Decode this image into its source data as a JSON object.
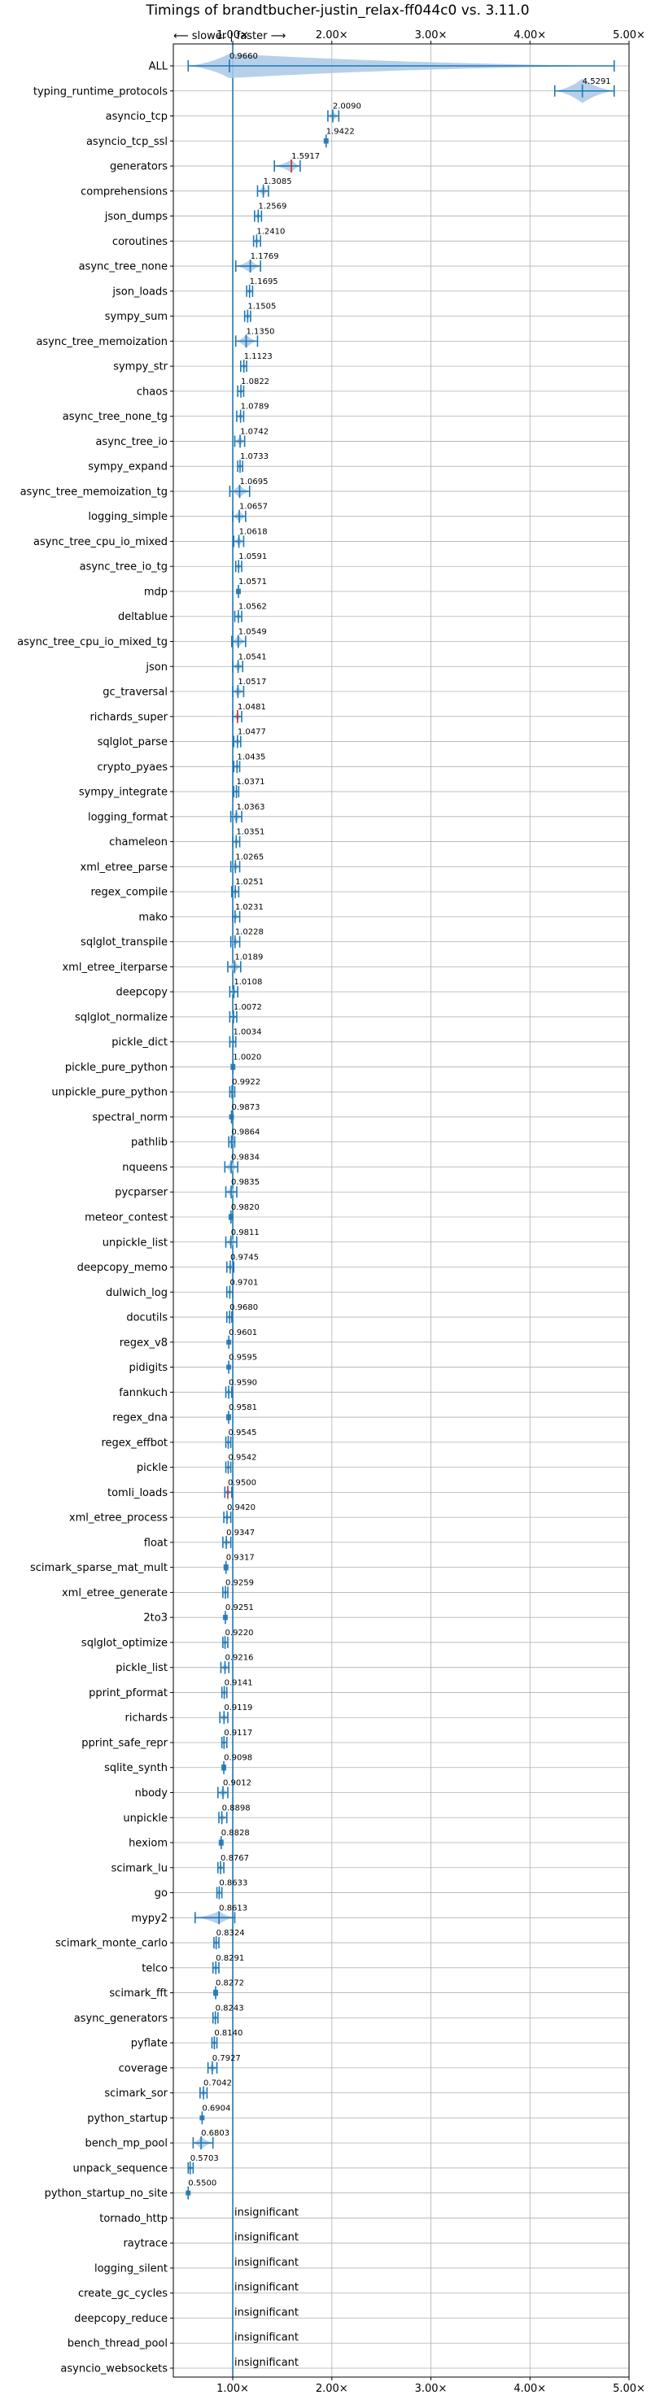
{
  "chart_data": {
    "type": "violin",
    "title": "Timings of brandtbucher-justin_relax-ff044c0 vs. 3.11.0",
    "direction_label": "⟵ slower | faster ⟶",
    "xlim": [
      0.4,
      5.0
    ],
    "x_ticks": [
      1.0,
      2.0,
      3.0,
      4.0,
      5.0
    ],
    "x_tick_labels": [
      "1.00×",
      "2.00×",
      "3.00×",
      "4.00×",
      "5.00×"
    ],
    "grid": true,
    "reference_x": 1.0,
    "colors": {
      "violin": "#1f77b4",
      "violin_fill": "#a9c8e6",
      "grid": "#b0b0b0",
      "marker_red": "#d62728"
    },
    "categories": [
      "ALL",
      "typing_runtime_protocols",
      "asyncio_tcp",
      "asyncio_tcp_ssl",
      "generators",
      "comprehensions",
      "json_dumps",
      "coroutines",
      "async_tree_none",
      "json_loads",
      "sympy_sum",
      "async_tree_memoization",
      "sympy_str",
      "chaos",
      "async_tree_none_tg",
      "async_tree_io",
      "sympy_expand",
      "async_tree_memoization_tg",
      "logging_simple",
      "async_tree_cpu_io_mixed",
      "async_tree_io_tg",
      "mdp",
      "deltablue",
      "async_tree_cpu_io_mixed_tg",
      "json",
      "gc_traversal",
      "richards_super",
      "sqlglot_parse",
      "crypto_pyaes",
      "sympy_integrate",
      "logging_format",
      "chameleon",
      "xml_etree_parse",
      "regex_compile",
      "mako",
      "sqlglot_transpile",
      "xml_etree_iterparse",
      "deepcopy",
      "sqlglot_normalize",
      "pickle_dict",
      "pickle_pure_python",
      "unpickle_pure_python",
      "spectral_norm",
      "pathlib",
      "nqueens",
      "pycparser",
      "meteor_contest",
      "unpickle_list",
      "deepcopy_memo",
      "dulwich_log",
      "docutils",
      "regex_v8",
      "pidigits",
      "fannkuch",
      "regex_dna",
      "regex_effbot",
      "pickle",
      "tomli_loads",
      "xml_etree_process",
      "float",
      "scimark_sparse_mat_mult",
      "xml_etree_generate",
      "2to3",
      "sqlglot_optimize",
      "pickle_list",
      "pprint_pformat",
      "richards",
      "pprint_safe_repr",
      "sqlite_synth",
      "nbody",
      "unpickle",
      "hexiom",
      "scimark_lu",
      "go",
      "mypy2",
      "scimark_monte_carlo",
      "telco",
      "scimark_fft",
      "async_generators",
      "pyflate",
      "coverage",
      "scimark_sor",
      "python_startup",
      "bench_mp_pool",
      "unpack_sequence",
      "python_startup_no_site",
      "tornado_http",
      "raytrace",
      "logging_silent",
      "create_gc_cycles",
      "deepcopy_reduce",
      "bench_thread_pool",
      "asyncio_websockets"
    ],
    "values": [
      0.966,
      4.5291,
      2.009,
      1.9422,
      1.5917,
      1.3085,
      1.2569,
      1.241,
      1.1769,
      1.1695,
      1.1505,
      1.135,
      1.1123,
      1.0822,
      1.0789,
      1.0742,
      1.0733,
      1.0695,
      1.0657,
      1.0618,
      1.0591,
      1.0571,
      1.0562,
      1.0549,
      1.0541,
      1.0517,
      1.0481,
      1.0477,
      1.0435,
      1.0371,
      1.0363,
      1.0351,
      1.0265,
      1.0251,
      1.0231,
      1.0228,
      1.0189,
      1.0108,
      1.0072,
      1.0034,
      1.002,
      0.9922,
      0.9873,
      0.9864,
      0.9834,
      0.9835,
      0.982,
      0.9811,
      0.9745,
      0.9701,
      0.968,
      0.9601,
      0.9595,
      0.959,
      0.9581,
      0.9545,
      0.9542,
      0.95,
      0.942,
      0.9347,
      0.9317,
      0.9259,
      0.9251,
      0.922,
      0.9216,
      0.9141,
      0.9119,
      0.9117,
      0.9098,
      0.9012,
      0.8898,
      0.8828,
      0.8767,
      0.8633,
      0.8613,
      0.8324,
      0.8291,
      0.8272,
      0.8243,
      0.814,
      0.7927,
      0.7042,
      0.6904,
      0.6803,
      0.5703,
      0.55,
      null,
      null,
      null,
      null,
      null,
      null,
      null
    ],
    "value_labels": [
      "0.9660",
      "4.5291",
      "2.0090",
      "1.9422",
      "1.5917",
      "1.3085",
      "1.2569",
      "1.2410",
      "1.1769",
      "1.1695",
      "1.1505",
      "1.1350",
      "1.1123",
      "1.0822",
      "1.0789",
      "1.0742",
      "1.0733",
      "1.0695",
      "1.0657",
      "1.0618",
      "1.0591",
      "1.0571",
      "1.0562",
      "1.0549",
      "1.0541",
      "1.0517",
      "1.0481",
      "1.0477",
      "1.0435",
      "1.0371",
      "1.0363",
      "1.0351",
      "1.0265",
      "1.0251",
      "1.0231",
      "1.0228",
      "1.0189",
      "1.0108",
      "1.0072",
      "1.0034",
      "1.0020",
      "0.9922",
      "0.9873",
      "0.9864",
      "0.9834",
      "0.9835",
      "0.9820",
      "0.9811",
      "0.9745",
      "0.9701",
      "0.9680",
      "0.9601",
      "0.9595",
      "0.9590",
      "0.9581",
      "0.9545",
      "0.9542",
      "0.9500",
      "0.9420",
      "0.9347",
      "0.9317",
      "0.9259",
      "0.9251",
      "0.9220",
      "0.9216",
      "0.9141",
      "0.9119",
      "0.9117",
      "0.9098",
      "0.9012",
      "0.8898",
      "0.8828",
      "0.8767",
      "0.8633",
      "0.8613",
      "0.8324",
      "0.8291",
      "0.8272",
      "0.8243",
      "0.8140",
      "0.7927",
      "0.7042",
      "0.6904",
      "0.6803",
      "0.5703",
      "0.5500",
      "insignificant",
      "insignificant",
      "insignificant",
      "insignificant",
      "insignificant",
      "insignificant",
      "insignificant"
    ],
    "ranges": {
      "ALL": [
        0.55,
        4.85
      ],
      "typing_runtime_protocols": [
        4.25,
        4.85
      ],
      "asyncio_tcp": [
        1.96,
        2.07
      ],
      "asyncio_tcp_ssl": [
        1.93,
        1.96
      ],
      "generators": [
        1.42,
        1.68
      ],
      "comprehensions": [
        1.25,
        1.36
      ],
      "json_dumps": [
        1.22,
        1.29
      ],
      "coroutines": [
        1.21,
        1.28
      ],
      "async_tree_none": [
        1.03,
        1.28
      ],
      "json_loads": [
        1.14,
        1.2
      ],
      "sympy_sum": [
        1.12,
        1.18
      ],
      "async_tree_memoization": [
        1.03,
        1.25
      ],
      "sympy_str": [
        1.08,
        1.14
      ],
      "chaos": [
        1.05,
        1.11
      ],
      "async_tree_none_tg": [
        1.04,
        1.11
      ],
      "async_tree_io": [
        1.02,
        1.12
      ],
      "sympy_expand": [
        1.05,
        1.1
      ],
      "async_tree_memoization_tg": [
        0.97,
        1.17
      ],
      "logging_simple": [
        1.0,
        1.13
      ],
      "async_tree_cpu_io_mixed": [
        1.01,
        1.11
      ],
      "async_tree_io_tg": [
        1.03,
        1.09
      ],
      "mdp": [
        1.04,
        1.07
      ],
      "deltablue": [
        1.02,
        1.09
      ],
      "async_tree_cpu_io_mixed_tg": [
        0.99,
        1.13
      ],
      "json": [
        1.0,
        1.1
      ],
      "gc_traversal": [
        1.0,
        1.11
      ],
      "richards_super": [
        1.0,
        1.09
      ],
      "sqlglot_parse": [
        1.01,
        1.08
      ],
      "crypto_pyaes": [
        1.01,
        1.07
      ],
      "sympy_integrate": [
        1.01,
        1.06
      ],
      "logging_format": [
        0.98,
        1.09
      ],
      "chameleon": [
        1.0,
        1.07
      ],
      "xml_etree_parse": [
        0.98,
        1.07
      ],
      "regex_compile": [
        0.99,
        1.06
      ],
      "mako": [
        1.0,
        1.07
      ],
      "sqlglot_transpile": [
        0.98,
        1.07
      ],
      "xml_etree_iterparse": [
        0.95,
        1.08
      ],
      "deepcopy": [
        0.97,
        1.05
      ],
      "sqlglot_normalize": [
        0.97,
        1.04
      ],
      "pickle_dict": [
        0.97,
        1.03
      ],
      "pickle_pure_python": [
        0.98,
        1.02
      ],
      "unpickle_pure_python": [
        0.97,
        1.02
      ],
      "spectral_norm": [
        0.97,
        1.0
      ],
      "pathlib": [
        0.96,
        1.02
      ],
      "nqueens": [
        0.92,
        1.05
      ],
      "pycparser": [
        0.93,
        1.04
      ],
      "meteor_contest": [
        0.96,
        1.0
      ],
      "unpickle_list": [
        0.93,
        1.04
      ],
      "deepcopy_memo": [
        0.94,
        1.01
      ],
      "dulwich_log": [
        0.94,
        1.0
      ],
      "docutils": [
        0.94,
        0.99
      ],
      "regex_v8": [
        0.95,
        0.97
      ],
      "pidigits": [
        0.95,
        0.97
      ],
      "fannkuch": [
        0.93,
        0.99
      ],
      "regex_dna": [
        0.94,
        0.98
      ],
      "regex_effbot": [
        0.93,
        0.98
      ],
      "pickle": [
        0.93,
        0.98
      ],
      "tomli_loads": [
        0.92,
        0.99
      ],
      "xml_etree_process": [
        0.91,
        0.98
      ],
      "float": [
        0.9,
        0.98
      ],
      "scimark_sparse_mat_mult": [
        0.91,
        0.95
      ],
      "xml_etree_generate": [
        0.9,
        0.95
      ],
      "2to3": [
        0.91,
        0.94
      ],
      "sqlglot_optimize": [
        0.9,
        0.95
      ],
      "pickle_list": [
        0.88,
        0.96
      ],
      "pprint_pformat": [
        0.89,
        0.94
      ],
      "richards": [
        0.87,
        0.95
      ],
      "pprint_safe_repr": [
        0.89,
        0.94
      ],
      "sqlite_synth": [
        0.89,
        0.93
      ],
      "nbody": [
        0.85,
        0.95
      ],
      "unpickle": [
        0.86,
        0.94
      ],
      "hexiom": [
        0.87,
        0.91
      ],
      "scimark_lu": [
        0.85,
        0.91
      ],
      "go": [
        0.84,
        0.89
      ],
      "mypy2": [
        0.62,
        1.02
      ],
      "scimark_monte_carlo": [
        0.81,
        0.86
      ],
      "telco": [
        0.8,
        0.86
      ],
      "scimark_fft": [
        0.81,
        0.85
      ],
      "async_generators": [
        0.8,
        0.85
      ],
      "pyflate": [
        0.79,
        0.84
      ],
      "coverage": [
        0.75,
        0.84
      ],
      "scimark_sor": [
        0.67,
        0.74
      ],
      "python_startup": [
        0.68,
        0.7
      ],
      "bench_mp_pool": [
        0.6,
        0.8
      ],
      "unpack_sequence": [
        0.55,
        0.6
      ],
      "python_startup_no_site": [
        0.54,
        0.56
      ]
    },
    "red_markers": [
      "generators",
      "richards_super",
      "tomli_loads"
    ]
  }
}
